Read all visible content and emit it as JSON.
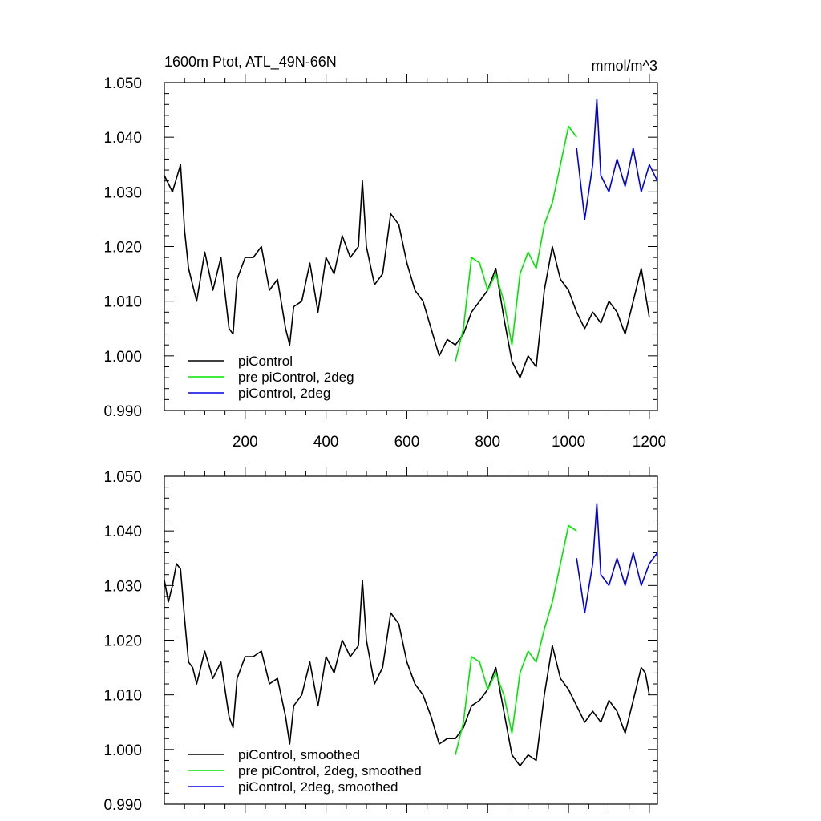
{
  "figure": {
    "title_left": "1600m Ptot, ATL_49N-66N",
    "title_right": "mmol/m^3"
  },
  "chart_data": [
    {
      "type": "line",
      "panel": "top",
      "title": "1600m Ptot, ATL_49N-66N",
      "units": "mmol/m^3",
      "xlim": [
        0,
        1220
      ],
      "ylim": [
        0.99,
        1.05
      ],
      "x_ticks": [
        200,
        400,
        600,
        800,
        1000,
        1200
      ],
      "x_tick_labels": [
        "200",
        "400",
        "600",
        "800",
        "1000",
        "1200"
      ],
      "y_ticks": [
        0.99,
        1.0,
        1.01,
        1.02,
        1.03,
        1.04,
        1.05
      ],
      "y_tick_labels": [
        "0.990",
        "1.000",
        "1.010",
        "1.020",
        "1.030",
        "1.040",
        "1.050"
      ],
      "legend_position": "bottom-left",
      "series": [
        {
          "name": "piControl",
          "color": "#000000",
          "x": [
            0,
            20,
            40,
            50,
            60,
            80,
            100,
            120,
            140,
            160,
            170,
            180,
            200,
            220,
            240,
            260,
            280,
            300,
            310,
            320,
            340,
            360,
            380,
            400,
            420,
            440,
            460,
            480,
            490,
            500,
            520,
            540,
            560,
            580,
            600,
            620,
            640,
            660,
            680,
            700,
            720,
            740,
            760,
            780,
            800,
            820,
            840,
            860,
            880,
            900,
            920,
            940,
            960,
            980,
            1000,
            1020,
            1040,
            1060,
            1080,
            1100,
            1120,
            1140,
            1160,
            1180,
            1200
          ],
          "values": [
            1.033,
            1.03,
            1.035,
            1.023,
            1.016,
            1.01,
            1.019,
            1.012,
            1.018,
            1.005,
            1.004,
            1.014,
            1.018,
            1.018,
            1.02,
            1.012,
            1.014,
            1.005,
            1.002,
            1.009,
            1.01,
            1.017,
            1.008,
            1.018,
            1.015,
            1.022,
            1.018,
            1.02,
            1.032,
            1.02,
            1.013,
            1.015,
            1.026,
            1.024,
            1.017,
            1.012,
            1.01,
            1.005,
            1.0,
            1.003,
            1.002,
            1.004,
            1.008,
            1.01,
            1.012,
            1.016,
            1.007,
            0.999,
            0.996,
            1.0,
            0.998,
            1.012,
            1.02,
            1.014,
            1.012,
            1.008,
            1.005,
            1.008,
            1.006,
            1.01,
            1.008,
            1.004,
            1.01,
            1.016,
            1.007
          ]
        },
        {
          "name": "pre piControl, 2deg",
          "color": "#00e600",
          "x": [
            720,
            740,
            760,
            780,
            800,
            820,
            840,
            860,
            880,
            900,
            920,
            940,
            960,
            980,
            1000,
            1020
          ],
          "values": [
            0.999,
            1.005,
            1.018,
            1.017,
            1.012,
            1.015,
            1.01,
            1.002,
            1.015,
            1.019,
            1.016,
            1.024,
            1.028,
            1.035,
            1.042,
            1.04
          ]
        },
        {
          "name": "piControl, 2deg",
          "color": "#0000e6",
          "x": [
            1020,
            1040,
            1060,
            1070,
            1080,
            1100,
            1120,
            1140,
            1160,
            1180,
            1200,
            1220
          ],
          "values": [
            1.038,
            1.025,
            1.035,
            1.047,
            1.033,
            1.03,
            1.036,
            1.031,
            1.038,
            1.03,
            1.035,
            1.032
          ]
        }
      ]
    },
    {
      "type": "line",
      "panel": "bottom",
      "xlim": [
        0,
        1220
      ],
      "ylim": [
        0.99,
        1.05
      ],
      "y_ticks": [
        0.99,
        1.0,
        1.01,
        1.02,
        1.03,
        1.04,
        1.05
      ],
      "y_tick_labels": [
        "0.990",
        "1.000",
        "1.010",
        "1.020",
        "1.030",
        "1.040",
        "1.050"
      ],
      "legend_position": "bottom-left",
      "series": [
        {
          "name": "piControl, smoothed",
          "color": "#000000",
          "x": [
            0,
            10,
            20,
            30,
            40,
            50,
            60,
            70,
            80,
            100,
            120,
            140,
            160,
            170,
            180,
            200,
            220,
            240,
            260,
            280,
            300,
            310,
            320,
            340,
            360,
            380,
            400,
            420,
            440,
            460,
            480,
            490,
            500,
            520,
            540,
            560,
            580,
            600,
            620,
            640,
            660,
            680,
            700,
            720,
            740,
            760,
            780,
            800,
            820,
            840,
            860,
            880,
            900,
            920,
            940,
            960,
            980,
            1000,
            1020,
            1040,
            1060,
            1080,
            1100,
            1120,
            1140,
            1160,
            1180,
            1190,
            1200
          ],
          "values": [
            1.031,
            1.027,
            1.03,
            1.034,
            1.033,
            1.024,
            1.016,
            1.015,
            1.012,
            1.018,
            1.013,
            1.016,
            1.006,
            1.004,
            1.013,
            1.017,
            1.017,
            1.018,
            1.012,
            1.013,
            1.006,
            1.001,
            1.008,
            1.01,
            1.016,
            1.008,
            1.017,
            1.014,
            1.02,
            1.017,
            1.019,
            1.031,
            1.02,
            1.012,
            1.015,
            1.025,
            1.023,
            1.016,
            1.012,
            1.01,
            1.006,
            1.001,
            1.002,
            1.002,
            1.004,
            1.008,
            1.009,
            1.011,
            1.015,
            1.007,
            0.999,
            0.997,
            0.999,
            0.998,
            1.01,
            1.019,
            1.013,
            1.011,
            1.008,
            1.005,
            1.007,
            1.005,
            1.009,
            1.007,
            1.003,
            1.009,
            1.015,
            1.014,
            1.01
          ]
        },
        {
          "name": "pre piControl, 2deg, smoothed",
          "color": "#00e600",
          "x": [
            720,
            740,
            760,
            780,
            800,
            820,
            840,
            860,
            880,
            900,
            920,
            940,
            960,
            980,
            1000,
            1020
          ],
          "values": [
            0.999,
            1.005,
            1.017,
            1.016,
            1.011,
            1.014,
            1.01,
            1.003,
            1.014,
            1.018,
            1.016,
            1.022,
            1.027,
            1.034,
            1.041,
            1.04
          ]
        },
        {
          "name": "piControl, 2deg, smoothed",
          "color": "#0000e6",
          "x": [
            1020,
            1040,
            1060,
            1070,
            1080,
            1100,
            1120,
            1140,
            1160,
            1180,
            1200,
            1220
          ],
          "values": [
            1.035,
            1.025,
            1.034,
            1.045,
            1.032,
            1.03,
            1.035,
            1.03,
            1.036,
            1.03,
            1.034,
            1.036
          ]
        }
      ]
    }
  ]
}
